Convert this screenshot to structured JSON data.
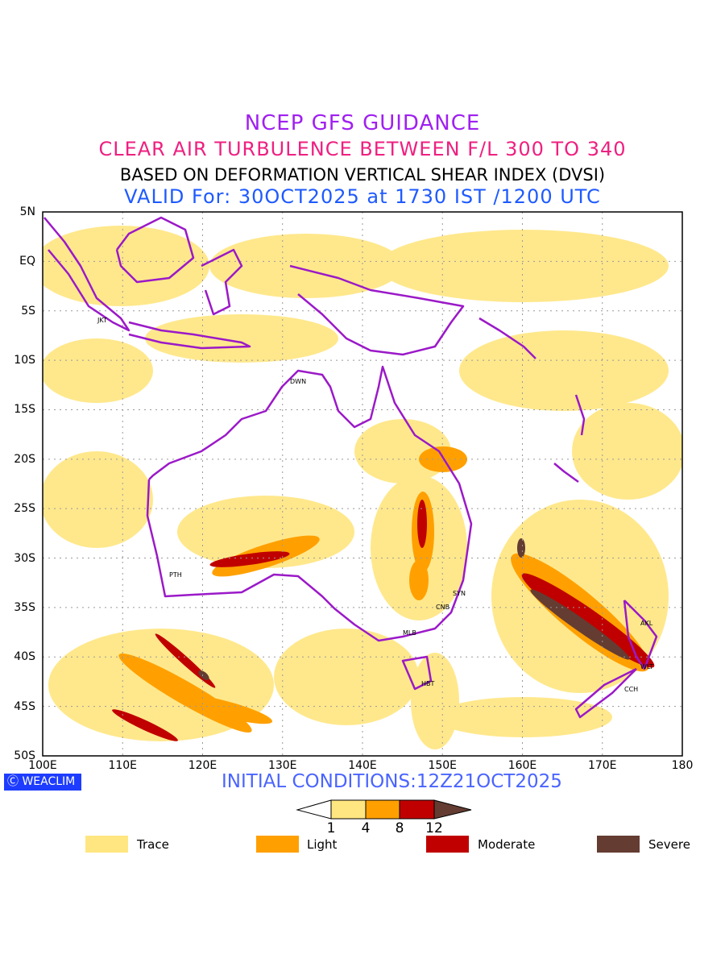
{
  "titles": {
    "line1": "NCEP GFS GUIDANCE",
    "line2": "CLEAR AIR TURBULENCE BETWEEN F/L 300 TO 340",
    "line3": "BASED ON DEFORMATION VERTICAL SHEAR INDEX (DVSI)",
    "line4": "VALID For: 30OCT2025 at 1730 IST /1200 UTC"
  },
  "lat_labels": [
    "5N",
    "EQ",
    "5S",
    "10S",
    "15S",
    "20S",
    "25S",
    "30S",
    "35S",
    "40S",
    "45S",
    "50S"
  ],
  "lon_labels": [
    "100E",
    "110E",
    "120E",
    "130E",
    "140E",
    "150E",
    "160E",
    "170E",
    "180"
  ],
  "cities": [
    "JKT",
    "DWN",
    "PTH",
    "SYN",
    "CNB",
    "MLB",
    "HBT",
    "AKL",
    "WLT",
    "CCH"
  ],
  "logo": "WEACLIM",
  "initial_conditions": "INITIAL CONDITIONS:12Z21OCT2025",
  "colorbar": {
    "ticks": [
      "1",
      "4",
      "8",
      "12"
    ]
  },
  "legend": [
    {
      "label": "Trace",
      "color": "#ffe680"
    },
    {
      "label": "Light",
      "color": "#ffa000"
    },
    {
      "label": "Moderate",
      "color": "#c00000"
    },
    {
      "label": "Severe",
      "color": "#643c32"
    }
  ],
  "colors": {
    "coast": "#9b19c8"
  }
}
